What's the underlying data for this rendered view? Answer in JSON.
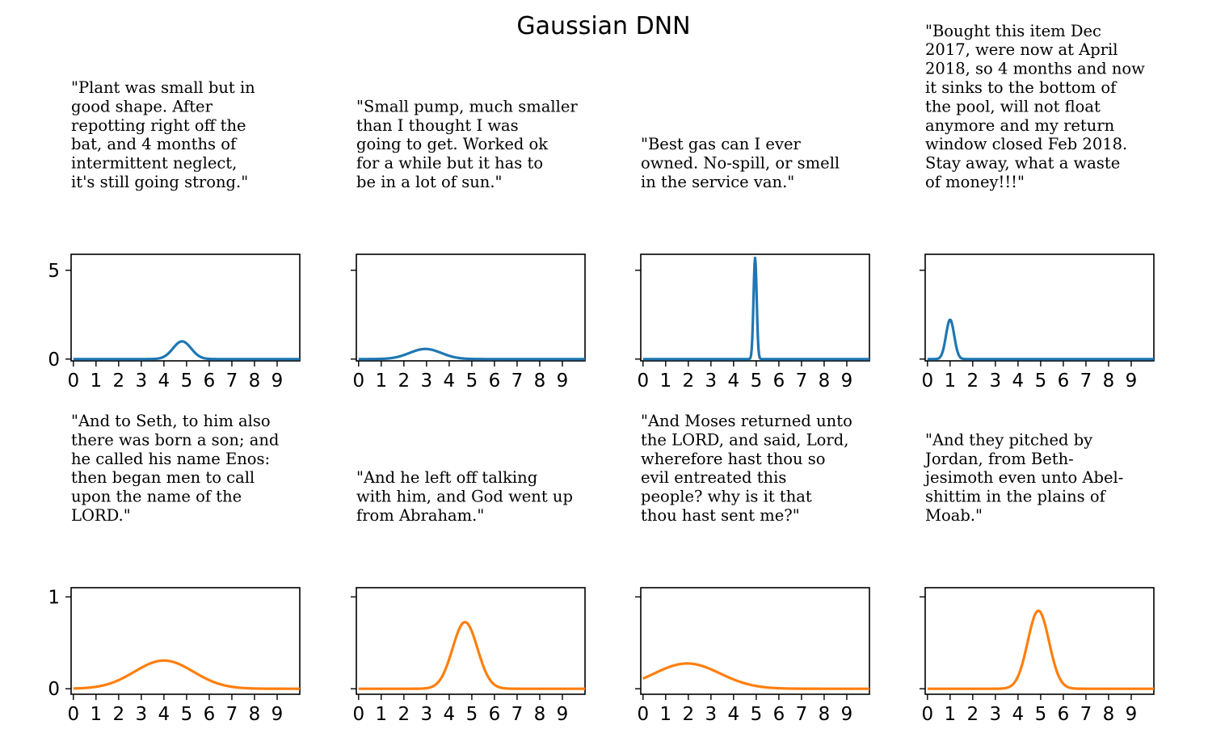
{
  "title": "Gaussian DNN",
  "colors": {
    "top_series": "#1f77b4",
    "bottom_series": "#ff7f0e"
  },
  "chart_data": [
    {
      "type": "line",
      "row": 0,
      "caption": [
        "\"Plant was small but in",
        "good shape. After",
        "repotting right off the",
        "bat, and 4 months of",
        "intermittent neglect,",
        "it's still going strong.\""
      ],
      "mean": 4.8,
      "sigma": 0.4,
      "xlim": [
        -0.1,
        10.0
      ],
      "ylim": [
        -0.1,
        5.9
      ],
      "xticks": [
        0,
        1,
        2,
        3,
        4,
        5,
        6,
        7,
        8,
        9
      ],
      "yticks": [
        0,
        5
      ],
      "show_ytick_labels": true,
      "color": "#1f77b4"
    },
    {
      "type": "line",
      "row": 0,
      "caption": [
        "\"Small pump, much smaller",
        "than I thought I was",
        "going to get.  Worked ok",
        "for a while but it has to",
        "be in a lot of sun.\""
      ],
      "mean": 2.95,
      "sigma": 0.7,
      "xlim": [
        -0.1,
        10.0
      ],
      "ylim": [
        -0.1,
        5.9
      ],
      "xticks": [
        0,
        1,
        2,
        3,
        4,
        5,
        6,
        7,
        8,
        9
      ],
      "yticks": [
        0,
        5
      ],
      "show_ytick_labels": false,
      "color": "#1f77b4"
    },
    {
      "type": "line",
      "row": 0,
      "caption": [
        "\"Best gas can I ever",
        "owned. No-spill, or smell",
        "in the service van.\""
      ],
      "mean": 4.95,
      "sigma": 0.07,
      "xlim": [
        -0.1,
        10.0
      ],
      "ylim": [
        -0.1,
        5.9
      ],
      "xticks": [
        0,
        1,
        2,
        3,
        4,
        5,
        6,
        7,
        8,
        9
      ],
      "yticks": [
        0,
        5
      ],
      "show_ytick_labels": false,
      "color": "#1f77b4"
    },
    {
      "type": "line",
      "row": 0,
      "caption": [
        "\"Bought this item Dec",
        "2017, were now at April",
        "2018, so 4 months and now",
        "it sinks to the bottom of",
        "the pool, will not float",
        "anymore and my return",
        "window closed Feb 2018.",
        "Stay away, what a waste",
        "of money!!!\""
      ],
      "mean": 1.0,
      "sigma": 0.18,
      "xlim": [
        -0.1,
        10.0
      ],
      "ylim": [
        -0.1,
        5.9
      ],
      "xticks": [
        0,
        1,
        2,
        3,
        4,
        5,
        6,
        7,
        8,
        9
      ],
      "yticks": [
        0,
        5
      ],
      "show_ytick_labels": false,
      "color": "#1f77b4"
    },
    {
      "type": "line",
      "row": 1,
      "caption": [
        "\"And to Seth, to him also",
        "there was born a son; and",
        "he called his name Enos:",
        "then began men to call",
        "upon the name of the",
        "LORD.\""
      ],
      "mean": 4.0,
      "sigma": 1.3,
      "xlim": [
        -0.1,
        10.0
      ],
      "ylim": [
        -0.06,
        1.1
      ],
      "xticks": [
        0,
        1,
        2,
        3,
        4,
        5,
        6,
        7,
        8,
        9
      ],
      "yticks": [
        0,
        1
      ],
      "show_ytick_labels": true,
      "color": "#ff7f0e"
    },
    {
      "type": "line",
      "row": 1,
      "caption": [
        "\"And he left off talking",
        "with him, and God went up",
        "from Abraham.\""
      ],
      "mean": 4.7,
      "sigma": 0.55,
      "xlim": [
        -0.1,
        10.0
      ],
      "ylim": [
        -0.06,
        1.1
      ],
      "xticks": [
        0,
        1,
        2,
        3,
        4,
        5,
        6,
        7,
        8,
        9
      ],
      "yticks": [
        0,
        1
      ],
      "show_ytick_labels": false,
      "color": "#ff7f0e"
    },
    {
      "type": "line",
      "row": 1,
      "caption": [
        "\"And Moses returned unto",
        "the LORD, and said, Lord,",
        "wherefore hast thou so",
        "evil entreated this",
        "people? why is it that",
        "thou hast sent me?\""
      ],
      "mean": 1.95,
      "sigma": 1.45,
      "xlim": [
        -0.1,
        10.0
      ],
      "ylim": [
        -0.06,
        1.1
      ],
      "xticks": [
        0,
        1,
        2,
        3,
        4,
        5,
        6,
        7,
        8,
        9
      ],
      "yticks": [
        0,
        1
      ],
      "show_ytick_labels": false,
      "color": "#ff7f0e"
    },
    {
      "type": "line",
      "row": 1,
      "caption": [
        "\"And they pitched by",
        "Jordan, from Beth-",
        "jesimoth even unto Abel-",
        "shittim in the plains of",
        "Moab.\""
      ],
      "mean": 4.9,
      "sigma": 0.47,
      "xlim": [
        -0.1,
        10.0
      ],
      "ylim": [
        -0.06,
        1.1
      ],
      "xticks": [
        0,
        1,
        2,
        3,
        4,
        5,
        6,
        7,
        8,
        9
      ],
      "yticks": [
        0,
        1
      ],
      "show_ytick_labels": false,
      "color": "#ff7f0e"
    }
  ]
}
